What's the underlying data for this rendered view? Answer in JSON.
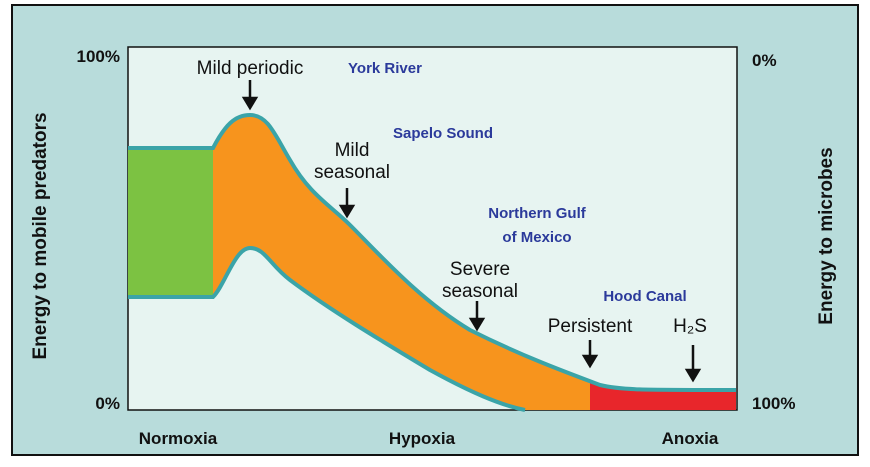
{
  "axes": {
    "left_top": "100%",
    "left_bottom": "0%",
    "right_top": "0%",
    "right_bottom": "100%",
    "left_title": "Energy to mobile predators",
    "right_title": "Energy to microbes",
    "x_labels": [
      "Normoxia",
      "Hypoxia",
      "Anoxia"
    ]
  },
  "stages": [
    {
      "lines": [
        "Mild periodic"
      ]
    },
    {
      "lines": [
        "Mild",
        "seasonal"
      ]
    },
    {
      "lines": [
        "Severe",
        "seasonal"
      ]
    },
    {
      "lines": [
        "Persistent"
      ]
    },
    {
      "lines": [
        "H₂S"
      ]
    }
  ],
  "places": [
    {
      "lines": [
        "York River"
      ]
    },
    {
      "lines": [
        "Sapelo Sound"
      ]
    },
    {
      "lines": [
        "Northern Gulf",
        "of Mexico"
      ]
    },
    {
      "lines": [
        "Hood Canal"
      ]
    }
  ]
}
